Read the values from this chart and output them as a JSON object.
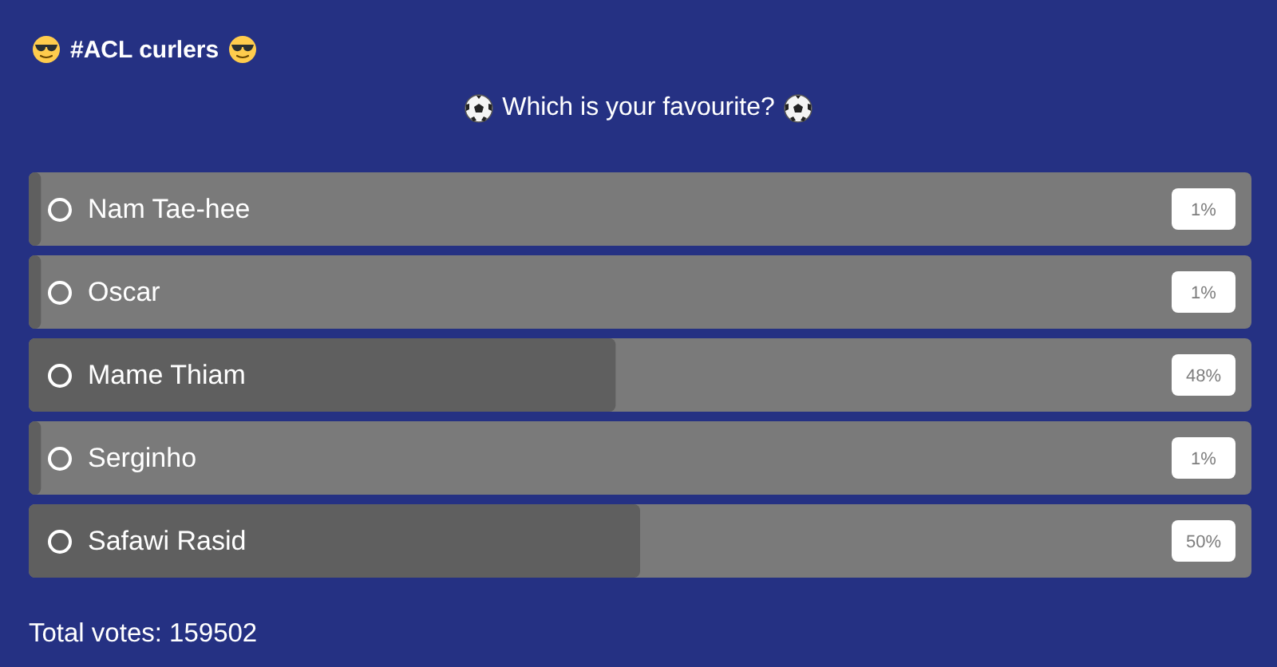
{
  "chart_data": {
    "type": "bar",
    "orientation": "horizontal",
    "title": "#ACL curlers",
    "subtitle": "Which is your favourite?",
    "categories": [
      "Nam Tae-hee",
      "Oscar",
      "Mame Thiam",
      "Serginho",
      "Safawi Rasid"
    ],
    "values": [
      1,
      1,
      48,
      1,
      50
    ],
    "color": "#5f5f5f",
    "value_labels": [
      "1%",
      "1%",
      "48%",
      "1%",
      "50%"
    ],
    "xlim": [
      0,
      100
    ],
    "tick_labels": "y",
    "legend": false,
    "annotations": [
      "Total votes: 159502"
    ]
  }
}
